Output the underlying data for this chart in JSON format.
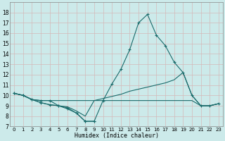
{
  "xlabel": "Humidex (Indice chaleur)",
  "bg_color": "#cceaea",
  "grid_color": "#d4b8b8",
  "line_color": "#1a6b6b",
  "xlim": [
    -0.5,
    23.5
  ],
  "ylim": [
    7,
    19
  ],
  "yticks": [
    7,
    8,
    9,
    10,
    11,
    12,
    13,
    14,
    15,
    16,
    17,
    18
  ],
  "xticks": [
    0,
    1,
    2,
    3,
    4,
    5,
    6,
    7,
    8,
    9,
    10,
    11,
    12,
    13,
    14,
    15,
    16,
    17,
    18,
    19,
    20,
    21,
    22,
    23
  ],
  "series": [
    {
      "x": [
        0,
        1,
        2,
        3,
        4,
        5,
        6,
        7,
        8,
        9,
        10,
        11,
        12,
        13,
        14,
        15,
        16,
        17,
        18,
        19,
        20,
        21,
        22,
        23
      ],
      "y": [
        10.2,
        10.0,
        9.6,
        9.5,
        9.5,
        9.0,
        8.7,
        8.3,
        7.5,
        7.5,
        9.5,
        11.1,
        12.5,
        14.4,
        17.0,
        17.8,
        15.8,
        14.8,
        13.2,
        12.2,
        10.0,
        9.0,
        9.0,
        9.2
      ],
      "marker": true
    },
    {
      "x": [
        0,
        1,
        2,
        3,
        9,
        10,
        11,
        12,
        13,
        14,
        15,
        16,
        17,
        18,
        19,
        20,
        21,
        22,
        23
      ],
      "y": [
        10.2,
        10.0,
        9.6,
        9.5,
        9.5,
        9.7,
        9.9,
        10.1,
        10.4,
        10.6,
        10.8,
        11.0,
        11.2,
        11.5,
        12.2,
        10.0,
        9.0,
        9.0,
        9.2
      ],
      "marker": false
    },
    {
      "x": [
        0,
        1,
        2,
        3,
        4,
        5,
        6,
        7,
        8,
        9,
        10,
        11,
        12,
        13,
        14,
        15,
        16,
        17,
        18,
        19,
        20,
        21,
        22,
        23
      ],
      "y": [
        10.2,
        10.0,
        9.6,
        9.3,
        9.1,
        9.0,
        8.9,
        8.5,
        8.0,
        9.5,
        9.5,
        9.5,
        9.5,
        9.5,
        9.5,
        9.5,
        9.5,
        9.5,
        9.5,
        9.5,
        9.5,
        9.0,
        9.0,
        9.2
      ],
      "marker": false
    },
    {
      "x": [
        0,
        1,
        2,
        3,
        4,
        5,
        6,
        7,
        8,
        9
      ],
      "y": [
        10.2,
        10.0,
        9.6,
        9.3,
        9.1,
        9.0,
        8.8,
        8.3,
        7.5,
        7.5
      ],
      "marker": true
    }
  ]
}
